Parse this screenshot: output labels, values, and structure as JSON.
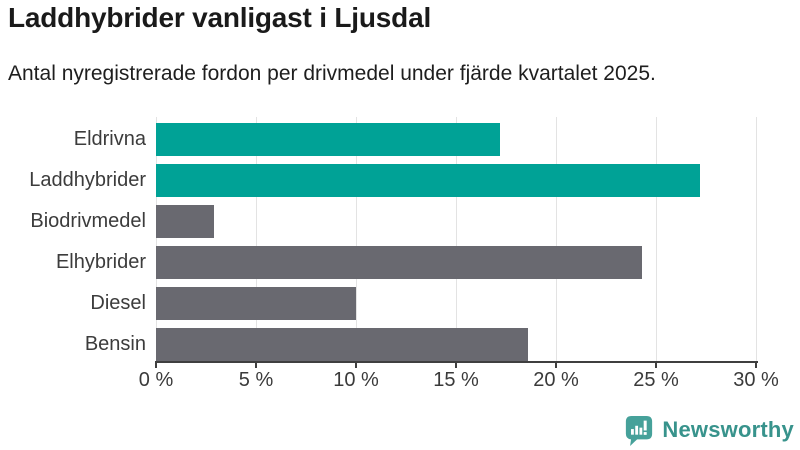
{
  "header": {
    "title": "Laddhybrider vanligast i Ljusdal",
    "subtitle": "Antal nyregistrerade fordon per drivmedel under fjärde kvartalet 2025."
  },
  "chart_data": {
    "type": "bar",
    "orientation": "horizontal",
    "title": "Laddhybrider vanligast i Ljusdal",
    "subtitle": "Antal nyregistrerade fordon per drivmedel under fjärde kvartalet 2025.",
    "categories": [
      "Eldrivna",
      "Laddhybrider",
      "Biodrivmedel",
      "Elhybrider",
      "Diesel",
      "Bensin"
    ],
    "values": [
      17.2,
      27.2,
      2.9,
      24.3,
      10.0,
      18.6
    ],
    "unit": "%",
    "xlim": [
      0,
      30
    ],
    "ticks": [
      0,
      5,
      10,
      15,
      20,
      25,
      30
    ],
    "tick_labels": [
      "0 %",
      "5 %",
      "10 %",
      "15 %",
      "20 %",
      "25 %",
      "30 %"
    ],
    "grid": "vertical",
    "bar_colors": [
      "teal",
      "teal",
      "gray",
      "gray",
      "gray",
      "gray"
    ],
    "palette": {
      "teal": "#00a296",
      "gray": "#696970"
    },
    "axis_color": "#3f3f3f",
    "gridline_color": "#e3e3e3"
  },
  "branding": {
    "name": "Newsworthy",
    "logo_icon": "bar-chart-speech-bubble",
    "color": "#38938c",
    "icon_color": "#46a19a"
  }
}
